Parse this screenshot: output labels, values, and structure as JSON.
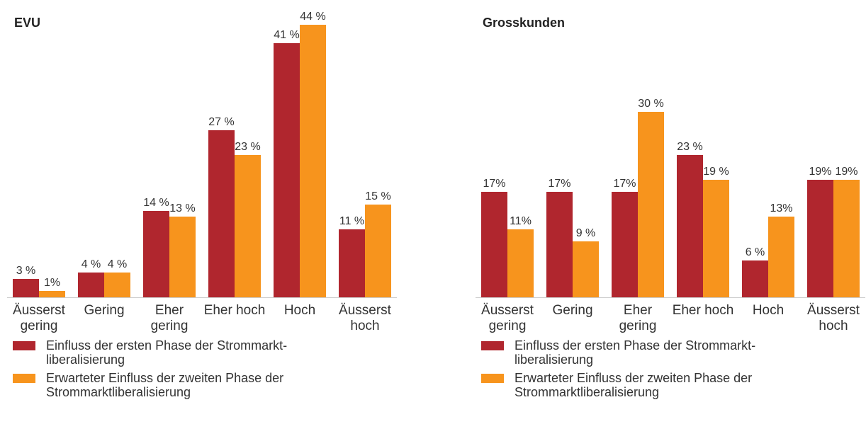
{
  "chart_data": [
    {
      "type": "bar",
      "title": "EVU",
      "categories": [
        "Äusserst gering",
        "Gering",
        "Eher gering",
        "Eher hoch",
        "Hoch",
        "Äusserst hoch"
      ],
      "series": [
        {
          "name": "Einfluss der ersten Phase der Strommarkt-liberalisierung",
          "color": "#b0262e",
          "values": [
            3,
            4,
            14,
            27,
            41,
            11
          ],
          "value_labels": [
            "3 %",
            "4 %",
            "14 %",
            "27 %",
            "41 %",
            "11 %"
          ]
        },
        {
          "name": "Erwarteter Einfluss der zweiten Phase der Strommarktliberalisierung",
          "color": "#f7941d",
          "values": [
            1,
            4,
            13,
            23,
            44,
            15
          ],
          "value_labels": [
            "1%",
            "4 %",
            "13 %",
            "23 %",
            "44 %",
            "15 %"
          ]
        }
      ]
    },
    {
      "type": "bar",
      "title": "Grosskunden",
      "categories": [
        "Äusserst gering",
        "Gering",
        "Eher gering",
        "Eher hoch",
        "Hoch",
        "Äusserst hoch"
      ],
      "series": [
        {
          "name": "Einfluss der ersten Phase der Strommarkt-liberalisierung",
          "color": "#b0262e",
          "values": [
            17,
            17,
            17,
            23,
            6,
            19
          ],
          "value_labels": [
            "17%",
            "17%",
            "17%",
            "23 %",
            "6 %",
            "19%"
          ]
        },
        {
          "name": "Erwarteter Einfluss der zweiten Phase der Strommarktliberalisierung",
          "color": "#f7941d",
          "values": [
            11,
            9,
            30,
            19,
            13,
            19
          ],
          "value_labels": [
            "11%",
            "9 %",
            "30 %",
            "19 %",
            "13%",
            "19%"
          ]
        }
      ]
    }
  ]
}
